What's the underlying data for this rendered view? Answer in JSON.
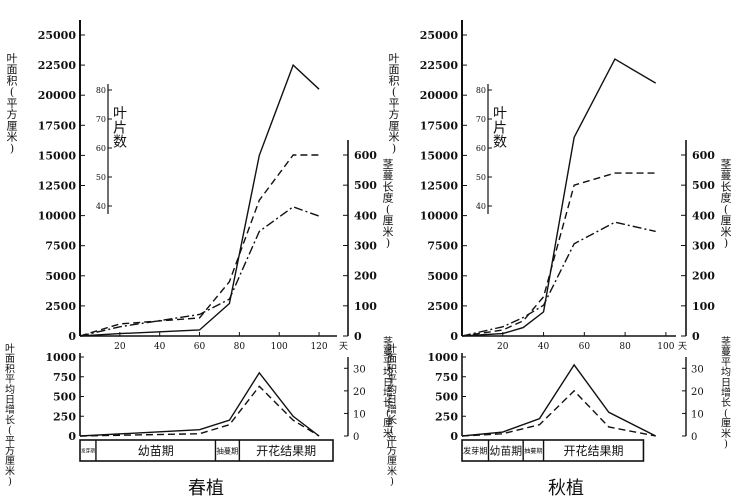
{
  "chart_data": [
    {
      "type": "line",
      "caption": "春植",
      "main": {
        "y_left_label": "叶面积(平方厘米)",
        "y_left_ticks": [
          "25000",
          "22500",
          "20000",
          "17500",
          "15000",
          "12500",
          "10000",
          "7500",
          "5000",
          "2500",
          "0"
        ],
        "y_left_range": [
          0,
          25000
        ],
        "leaf_count_label": "叶片数",
        "leaf_count_ticks": [
          "80",
          "70",
          "60",
          "50",
          "40"
        ],
        "leaf_count_range": [
          0,
          80
        ],
        "y_right_label": "茎蔓长度(厘米)",
        "y_right_ticks": [
          "600",
          "500",
          "400",
          "300",
          "200",
          "100",
          "0"
        ],
        "y_right_range": [
          0,
          700
        ],
        "x_ticks": [
          "20",
          "40",
          "60",
          "80",
          "100",
          "120"
        ],
        "x_range": [
          0,
          127
        ],
        "x_unit": "天",
        "series": [
          {
            "key": "leaf_area",
            "style": "solid",
            "x": [
              0,
              20,
              40,
              60,
              75,
              90,
              107,
              120
            ],
            "y": [
              0,
              200,
              350,
              500,
              2700,
              15000,
              22500,
              20500
            ]
          },
          {
            "key": "vine_length",
            "style": "dashed",
            "x": [
              0,
              20,
              40,
              60,
              75,
              90,
              107,
              120
            ],
            "y": [
              0,
              40,
              50,
              60,
              180,
              450,
              600,
              600
            ]
          },
          {
            "key": "leaf_count",
            "style": "dashdot",
            "x": [
              0,
              20,
              40,
              60,
              75,
              90,
              107,
              120
            ],
            "y": [
              0,
              3,
              5,
              7,
              12,
              34,
              42,
              39
            ]
          }
        ]
      },
      "sub": {
        "y_left_label": "叶面积平均日增长(平方厘米)",
        "y_left_ticks": [
          "1000",
          "750",
          "500",
          "250",
          "0"
        ],
        "y_left_range": [
          0,
          1000
        ],
        "y_right_label": "茎蔓平均日增长(厘米)",
        "y_right_ticks": [
          "30",
          "20",
          "10",
          "0"
        ],
        "y_right_range": [
          0,
          35
        ],
        "series": [
          {
            "key": "leaf_area_daily",
            "style": "solid",
            "x": [
              0,
              60,
              75,
              90,
              107,
              120
            ],
            "y": [
              0,
              80,
              200,
              800,
              250,
              0
            ]
          },
          {
            "key": "vine_daily",
            "style": "dashed",
            "x": [
              0,
              60,
              75,
              90,
              107,
              120
            ],
            "y": [
              0,
              1,
              5,
              22,
              7,
              0
            ]
          }
        ]
      },
      "stages": [
        {
          "label": "发芽期",
          "from": 0,
          "to": 8
        },
        {
          "label": "幼苗期",
          "from": 8,
          "to": 68
        },
        {
          "label": "抽蔓期",
          "from": 68,
          "to": 80
        },
        {
          "label": "开花结果期",
          "from": 80,
          "to": 127
        }
      ]
    },
    {
      "type": "line",
      "caption": "秋植",
      "main": {
        "y_left_label": "叶面积(平方厘米)",
        "y_left_ticks": [
          "25000",
          "22500",
          "20000",
          "17500",
          "15000",
          "12500",
          "10000",
          "7500",
          "5000",
          "2500",
          "0"
        ],
        "y_left_range": [
          0,
          25000
        ],
        "leaf_count_label": "叶片数",
        "leaf_count_ticks": [
          "80",
          "70",
          "60",
          "50",
          "40"
        ],
        "leaf_count_range": [
          0,
          80
        ],
        "y_right_label": "茎蔓长度(厘米)",
        "y_right_ticks": [
          "600",
          "500",
          "400",
          "300",
          "200",
          "100",
          "0"
        ],
        "y_right_range": [
          0,
          700
        ],
        "x_ticks": [
          "20",
          "40",
          "60",
          "80",
          "100"
        ],
        "x_range": [
          0,
          103
        ],
        "x_unit": "天",
        "series": [
          {
            "key": "leaf_area",
            "style": "solid",
            "x": [
              0,
              20,
              30,
              40,
              55,
              75,
              95
            ],
            "y": [
              0,
              200,
              700,
              2000,
              16500,
              23000,
              21000
            ]
          },
          {
            "key": "vine_length",
            "style": "dashed",
            "x": [
              0,
              20,
              30,
              40,
              55,
              75,
              95
            ],
            "y": [
              0,
              20,
              50,
              130,
              500,
              540,
              540
            ]
          },
          {
            "key": "leaf_count",
            "style": "dashdot",
            "x": [
              0,
              20,
              30,
              40,
              55,
              75,
              95
            ],
            "y": [
              0,
              3,
              6,
              10,
              30,
              37,
              34
            ]
          }
        ]
      },
      "sub": {
        "y_left_label": "叶面积平均日增长(平方厘米)",
        "y_left_ticks": [
          "1000",
          "750",
          "500",
          "250",
          "0"
        ],
        "y_left_range": [
          0,
          1000
        ],
        "y_right_label": "茎蔓平均日增长(厘米)",
        "y_right_ticks": [
          "30",
          "20",
          "10",
          "0"
        ],
        "y_right_range": [
          0,
          35
        ],
        "series": [
          {
            "key": "leaf_area_daily",
            "style": "solid",
            "x": [
              0,
              20,
              38,
              55,
              72,
              95
            ],
            "y": [
              0,
              50,
              220,
              900,
              300,
              0
            ]
          },
          {
            "key": "vine_daily",
            "style": "dashed",
            "x": [
              0,
              20,
              38,
              55,
              72,
              95
            ],
            "y": [
              0,
              1,
              5,
              20,
              4,
              0
            ]
          }
        ]
      },
      "stages": [
        {
          "label": "发芽期",
          "from": 0,
          "to": 13
        },
        {
          "label": "幼苗期",
          "from": 13,
          "to": 30
        },
        {
          "label": "抽蔓期",
          "from": 30,
          "to": 40
        },
        {
          "label": "开花结果期",
          "from": 40,
          "to": 89
        }
      ]
    }
  ]
}
